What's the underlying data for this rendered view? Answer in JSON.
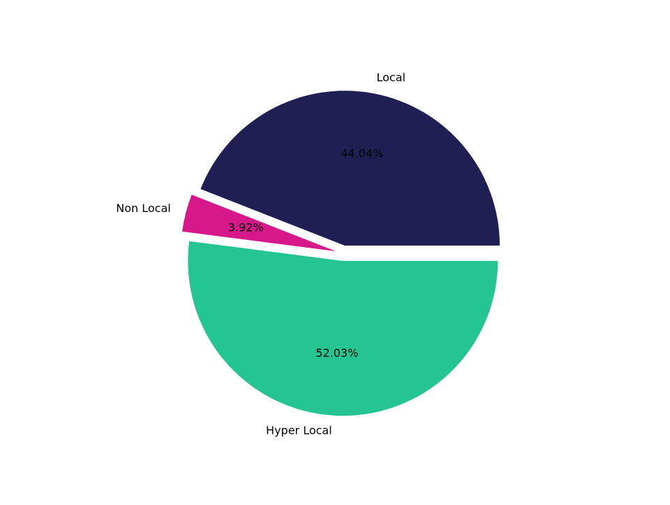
{
  "chart_data": {
    "type": "pie",
    "categories": [
      "Local",
      "Non Local",
      "Hyper Local"
    ],
    "values": [
      44.04,
      3.92,
      52.03
    ],
    "value_labels": [
      "44.04%",
      "3.92%",
      "52.03%"
    ],
    "colors": [
      "#1f1f54",
      "#d6188a",
      "#25c592"
    ],
    "explode": [
      0.05,
      0.05,
      0.05
    ]
  }
}
